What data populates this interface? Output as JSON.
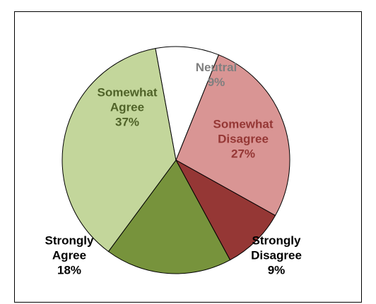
{
  "chart_data": {
    "type": "pie",
    "title": "",
    "start_angle_deg": -68,
    "direction": "clockwise",
    "slices": [
      {
        "key": "somewhat-disagree",
        "label_lines": [
          "Somewhat",
          "Disagree",
          "27%"
        ],
        "value": 27,
        "color": "#D99594",
        "label_color": "#953735"
      },
      {
        "key": "strongly-disagree",
        "label_lines": [
          "Strongly",
          "Disagree",
          "9%"
        ],
        "value": 9,
        "color": "#953735",
        "label_color": "#000000"
      },
      {
        "key": "strongly-agree",
        "label_lines": [
          "Strongly",
          "Agree",
          "18%"
        ],
        "value": 18,
        "color": "#77933C",
        "label_color": "#000000"
      },
      {
        "key": "somewhat-agree",
        "label_lines": [
          "Somewhat",
          "Agree",
          "37%"
        ],
        "value": 37,
        "color": "#C3D69B",
        "label_color": "#4F6228"
      },
      {
        "key": "neutral",
        "label_lines": [
          "Neutral",
          "9%"
        ],
        "value": 9,
        "color": "#FFFFFF",
        "label_color": "#7F7F7F"
      }
    ]
  }
}
